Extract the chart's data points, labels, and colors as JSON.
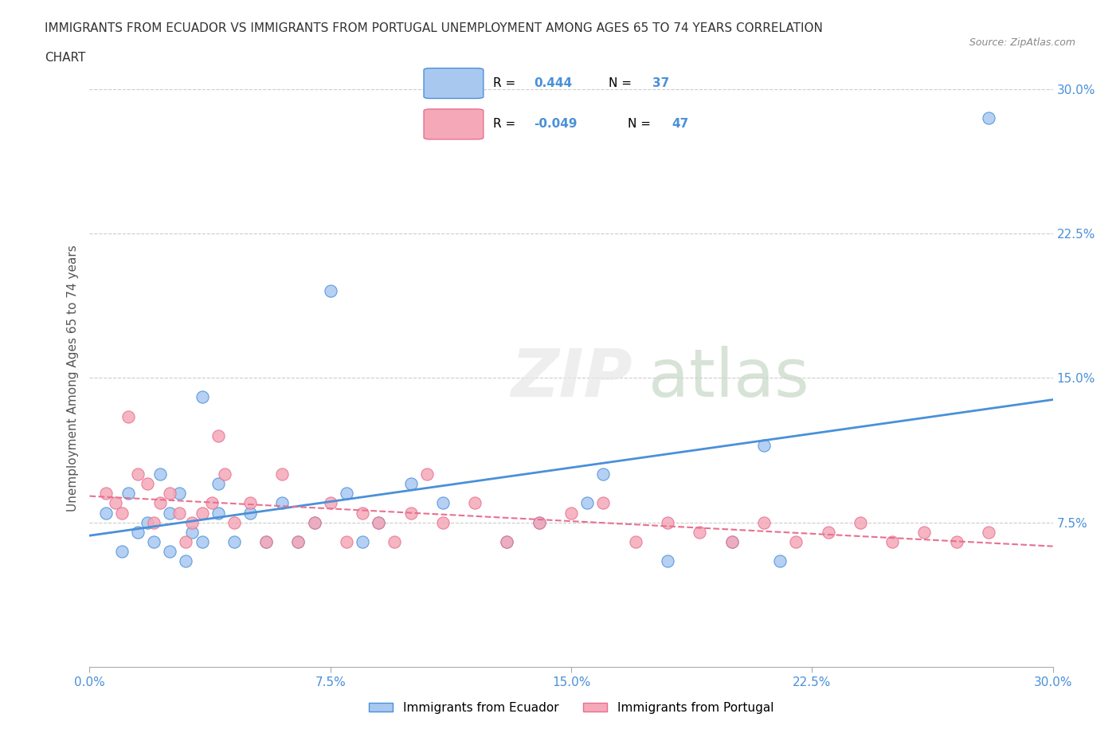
{
  "title_line1": "IMMIGRANTS FROM ECUADOR VS IMMIGRANTS FROM PORTUGAL UNEMPLOYMENT AMONG AGES 65 TO 74 YEARS CORRELATION",
  "title_line2": "CHART",
  "source_text": "Source: ZipAtlas.com",
  "xlabel": "",
  "ylabel": "Unemployment Among Ages 65 to 74 years",
  "xlim": [
    0.0,
    0.3
  ],
  "ylim": [
    0.0,
    0.3
  ],
  "xtick_labels": [
    "0.0%",
    "7.5%",
    "15.0%",
    "22.5%",
    "30.0%"
  ],
  "xtick_vals": [
    0.0,
    0.075,
    0.15,
    0.225,
    0.3
  ],
  "ytick_labels": [
    "7.5%",
    "15.0%",
    "22.5%",
    "30.0%"
  ],
  "ytick_vals": [
    0.075,
    0.15,
    0.225,
    0.3
  ],
  "ecuador_color": "#a8c8f0",
  "portugal_color": "#f4a8b8",
  "ecuador_line_color": "#4a90d9",
  "portugal_line_color": "#e87090",
  "R_ecuador": 0.444,
  "N_ecuador": 37,
  "R_portugal": -0.049,
  "N_portugal": 47,
  "watermark": "ZIPatlas",
  "ecuador_scatter_x": [
    0.005,
    0.01,
    0.012,
    0.015,
    0.018,
    0.02,
    0.022,
    0.025,
    0.025,
    0.028,
    0.03,
    0.032,
    0.035,
    0.035,
    0.04,
    0.04,
    0.045,
    0.05,
    0.055,
    0.06,
    0.065,
    0.07,
    0.075,
    0.08,
    0.085,
    0.09,
    0.1,
    0.11,
    0.13,
    0.14,
    0.155,
    0.16,
    0.18,
    0.2,
    0.21,
    0.215,
    0.28
  ],
  "ecuador_scatter_y": [
    0.08,
    0.06,
    0.09,
    0.07,
    0.075,
    0.065,
    0.1,
    0.08,
    0.06,
    0.09,
    0.055,
    0.07,
    0.14,
    0.065,
    0.08,
    0.095,
    0.065,
    0.08,
    0.065,
    0.085,
    0.065,
    0.075,
    0.195,
    0.09,
    0.065,
    0.075,
    0.095,
    0.085,
    0.065,
    0.075,
    0.085,
    0.1,
    0.055,
    0.065,
    0.115,
    0.055,
    0.285
  ],
  "portugal_scatter_x": [
    0.005,
    0.008,
    0.01,
    0.012,
    0.015,
    0.018,
    0.02,
    0.022,
    0.025,
    0.028,
    0.03,
    0.032,
    0.035,
    0.038,
    0.04,
    0.042,
    0.045,
    0.05,
    0.055,
    0.06,
    0.065,
    0.07,
    0.075,
    0.08,
    0.085,
    0.09,
    0.095,
    0.1,
    0.105,
    0.11,
    0.12,
    0.13,
    0.14,
    0.15,
    0.16,
    0.17,
    0.18,
    0.19,
    0.2,
    0.21,
    0.22,
    0.23,
    0.24,
    0.25,
    0.26,
    0.27,
    0.28
  ],
  "portugal_scatter_y": [
    0.09,
    0.085,
    0.08,
    0.13,
    0.1,
    0.095,
    0.075,
    0.085,
    0.09,
    0.08,
    0.065,
    0.075,
    0.08,
    0.085,
    0.12,
    0.1,
    0.075,
    0.085,
    0.065,
    0.1,
    0.065,
    0.075,
    0.085,
    0.065,
    0.08,
    0.075,
    0.065,
    0.08,
    0.1,
    0.075,
    0.085,
    0.065,
    0.075,
    0.08,
    0.085,
    0.065,
    0.075,
    0.07,
    0.065,
    0.075,
    0.065,
    0.07,
    0.075,
    0.065,
    0.07,
    0.065,
    0.07
  ]
}
